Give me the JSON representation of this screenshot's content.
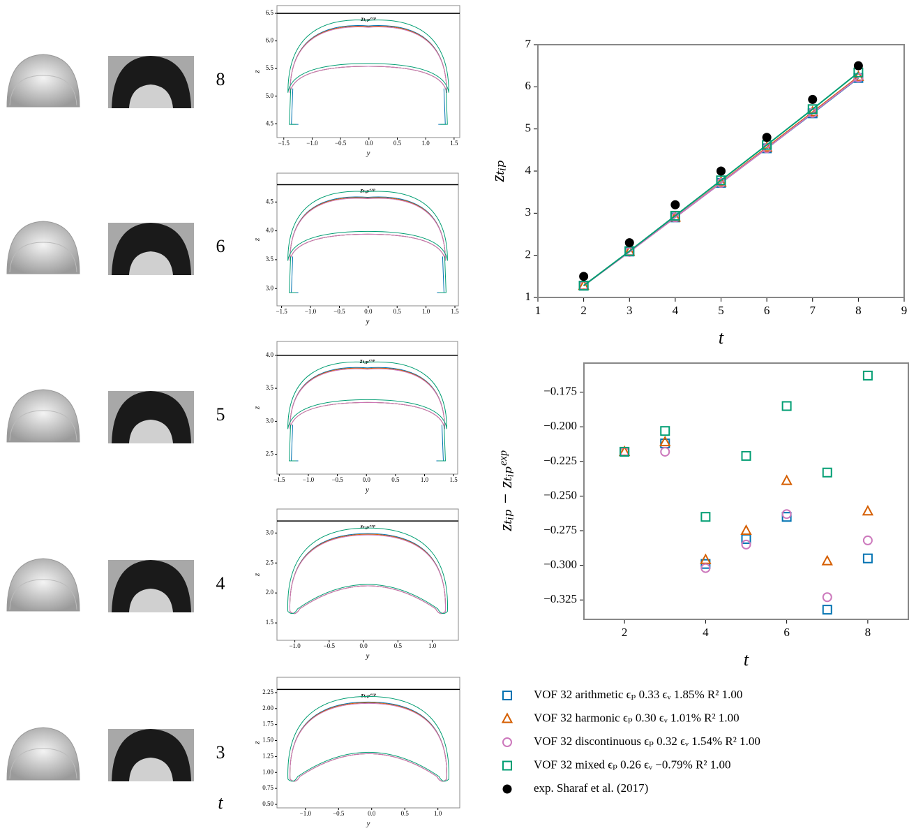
{
  "time_axis_label": "t",
  "panels": [
    {
      "time": "8",
      "x_label": "y",
      "y_label": "z",
      "exp_label": "zₜᵢₚᵉˣᵖ",
      "exp_line": 6.5,
      "xlim": [
        -1.62,
        1.6
      ],
      "ylim": [
        4.25,
        6.64
      ],
      "xticks": [
        {
          "value": -1.5,
          "label": "−1.5"
        },
        {
          "value": -1.0,
          "label": "−1.0"
        },
        {
          "value": -0.5,
          "label": "−0.5"
        },
        {
          "value": 0.0,
          "label": "0.0"
        },
        {
          "value": 0.5,
          "label": "0.5"
        },
        {
          "value": 1.0,
          "label": "1.0"
        },
        {
          "value": 1.5,
          "label": "1.5"
        }
      ],
      "yticks": [
        {
          "value": 4.5,
          "label": "4.5"
        },
        {
          "value": 5.0,
          "label": "5.0"
        },
        {
          "value": 5.5,
          "label": "5.5"
        },
        {
          "value": 6.0,
          "label": "6.0"
        },
        {
          "value": 6.5,
          "label": "6.5"
        }
      ]
    },
    {
      "time": "6",
      "x_label": "y",
      "y_label": "z",
      "exp_label": "zₜᵢₚᵉˣᵖ",
      "exp_line": 4.8,
      "xlim": [
        -1.58,
        1.56
      ],
      "ylim": [
        2.7,
        5.0
      ],
      "xticks": [
        {
          "value": -1.5,
          "label": "−1.5"
        },
        {
          "value": -1.0,
          "label": "−1.0"
        },
        {
          "value": -0.5,
          "label": "−0.5"
        },
        {
          "value": 0.0,
          "label": "0.0"
        },
        {
          "value": 0.5,
          "label": "0.5"
        },
        {
          "value": 1.0,
          "label": "1.0"
        },
        {
          "value": 1.5,
          "label": "1.5"
        }
      ],
      "yticks": [
        {
          "value": 3.0,
          "label": "3.0"
        },
        {
          "value": 3.5,
          "label": "3.5"
        },
        {
          "value": 4.0,
          "label": "4.0"
        },
        {
          "value": 4.5,
          "label": "4.5"
        }
      ]
    },
    {
      "time": "5",
      "x_label": "y",
      "y_label": "z",
      "exp_label": "zₜᵢₚᵉˣᵖ",
      "exp_line": 4.0,
      "xlim": [
        -1.54,
        1.57
      ],
      "ylim": [
        2.2,
        4.21
      ],
      "xticks": [
        {
          "value": -1.5,
          "label": "−1.5"
        },
        {
          "value": -1.0,
          "label": "−1.0"
        },
        {
          "value": -0.5,
          "label": "−0.5"
        },
        {
          "value": 0.0,
          "label": "0.0"
        },
        {
          "value": 0.5,
          "label": "0.5"
        },
        {
          "value": 1.0,
          "label": "1.0"
        },
        {
          "value": 1.5,
          "label": "1.5"
        }
      ],
      "yticks": [
        {
          "value": 2.5,
          "label": "2.5"
        },
        {
          "value": 3.0,
          "label": "3.0"
        },
        {
          "value": 3.5,
          "label": "3.5"
        },
        {
          "value": 4.0,
          "label": "4.0"
        }
      ]
    },
    {
      "time": "4",
      "x_label": "y",
      "y_label": "z",
      "exp_label": "zₜᵢₚᵉˣᵖ",
      "exp_line": 3.2,
      "xlim": [
        -1.26,
        1.38
      ],
      "ylim": [
        1.21,
        3.4
      ],
      "xticks": [
        {
          "value": -1.0,
          "label": "−1.0"
        },
        {
          "value": -0.5,
          "label": "−0.5"
        },
        {
          "value": 0.0,
          "label": "0.0"
        },
        {
          "value": 0.5,
          "label": "0.5"
        },
        {
          "value": 1.0,
          "label": "1.0"
        }
      ],
      "yticks": [
        {
          "value": 1.5,
          "label": "1.5"
        },
        {
          "value": 2.0,
          "label": "2.0"
        },
        {
          "value": 2.5,
          "label": "2.5"
        },
        {
          "value": 3.0,
          "label": "3.0"
        }
      ]
    },
    {
      "time": "3",
      "x_label": "y",
      "y_label": "z",
      "exp_label": "zₜᵢₚᵉˣᵖ",
      "exp_line": 2.3,
      "xlim": [
        -1.43,
        1.33
      ],
      "ylim": [
        0.445,
        2.49
      ],
      "xticks": [
        {
          "value": -1.0,
          "label": "−1.0"
        },
        {
          "value": -0.5,
          "label": "−0.5"
        },
        {
          "value": 0.0,
          "label": "0.0"
        },
        {
          "value": 0.5,
          "label": "0.5"
        },
        {
          "value": 1.0,
          "label": "1.0"
        }
      ],
      "yticks": [
        {
          "value": 0.5,
          "label": "0.50"
        },
        {
          "value": 0.75,
          "label": "0.75"
        },
        {
          "value": 1.0,
          "label": "1.00"
        },
        {
          "value": 1.25,
          "label": "1.25"
        },
        {
          "value": 1.5,
          "label": "1.50"
        },
        {
          "value": 1.75,
          "label": "1.75"
        },
        {
          "value": 2.0,
          "label": "2.00"
        },
        {
          "value": 2.25,
          "label": "2.25"
        }
      ]
    }
  ],
  "chart_data": [
    {
      "type": "line",
      "x_label": "t",
      "y_label": "zₜᵢₚ",
      "x": [
        2,
        3,
        4,
        5,
        6,
        7,
        8
      ],
      "xlim": [
        1,
        9
      ],
      "ylim": [
        1,
        7
      ],
      "xticks": [
        1,
        2,
        3,
        4,
        5,
        6,
        7,
        8,
        9
      ],
      "yticks": [
        1,
        2,
        3,
        4,
        5,
        6,
        7
      ],
      "legend": "below",
      "series": [
        {
          "name": "VOF 32 arithmetic ϵₚ 0.33 ϵᵥ 1.85% R² 1.00",
          "color": "#0173b2",
          "marker": "square",
          "show_line": true,
          "values": [
            1.28,
            2.09,
            2.9,
            3.72,
            4.54,
            5.37,
            6.21
          ]
        },
        {
          "name": "VOF 32 harmonic ϵₚ 0.30 ϵᵥ 1.01% R² 1.00",
          "color": "#d55e00",
          "marker": "triangle",
          "show_line": true,
          "values": [
            1.28,
            2.09,
            2.9,
            3.73,
            4.56,
            5.4,
            6.24
          ]
        },
        {
          "name": "VOF 32 discontinuous ϵₚ 0.32 ϵᵥ 1.54% R² 1.00",
          "color": "#cc78bc",
          "marker": "circle",
          "show_line": true,
          "values": [
            1.28,
            2.08,
            2.9,
            3.72,
            4.54,
            5.38,
            6.22
          ]
        },
        {
          "name": "VOF 32 mixed ϵₚ 0.26 ϵᵥ −0.79% R² 1.00",
          "color": "#029e73",
          "marker": "square",
          "show_line": true,
          "values": [
            1.28,
            2.1,
            2.94,
            3.78,
            4.62,
            5.47,
            6.34
          ]
        },
        {
          "name": "exp. Sharaf et al. (2017)",
          "color": "#000000",
          "marker": "dot",
          "show_line": false,
          "values": [
            1.5,
            2.3,
            3.2,
            4.0,
            4.8,
            5.7,
            6.5
          ]
        }
      ]
    },
    {
      "type": "scatter",
      "x_label": "t",
      "y_label": "zₜᵢₚ − zₜᵢₚᵉˣᵖ",
      "x": [
        2,
        3,
        4,
        5,
        6,
        7,
        8
      ],
      "xlim": [
        1,
        9
      ],
      "ylim": [
        -0.339,
        -0.154
      ],
      "xticks": [
        2,
        4,
        6,
        8
      ],
      "yticks": [
        {
          "value": -0.175,
          "label": "−0.175"
        },
        {
          "value": -0.2,
          "label": "−0.200"
        },
        {
          "value": -0.225,
          "label": "−0.225"
        },
        {
          "value": -0.25,
          "label": "−0.250"
        },
        {
          "value": -0.275,
          "label": "−0.275"
        },
        {
          "value": -0.3,
          "label": "−0.300"
        },
        {
          "value": -0.325,
          "label": "−0.325"
        }
      ],
      "series": [
        {
          "color": "#0173b2",
          "marker": "square",
          "values": [
            -0.218,
            -0.212,
            -0.299,
            -0.281,
            -0.265,
            -0.332,
            -0.295
          ]
        },
        {
          "color": "#d55e00",
          "marker": "triangle",
          "values": [
            -0.218,
            -0.211,
            -0.296,
            -0.275,
            -0.239,
            -0.297,
            -0.261
          ]
        },
        {
          "color": "#cc78bc",
          "marker": "circle",
          "values": [
            -0.218,
            -0.218,
            -0.302,
            -0.285,
            -0.263,
            -0.323,
            -0.282
          ]
        },
        {
          "color": "#029e73",
          "marker": "square",
          "values": [
            -0.218,
            -0.203,
            -0.265,
            -0.221,
            -0.185,
            -0.233,
            -0.163
          ]
        }
      ]
    }
  ]
}
